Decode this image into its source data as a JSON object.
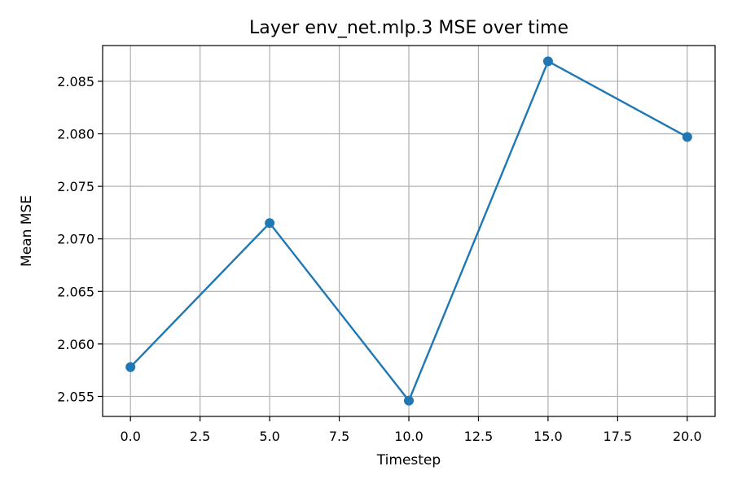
{
  "chart_data": {
    "type": "line",
    "title": "Layer env_net.mlp.3 MSE over time",
    "xlabel": "Timestep",
    "ylabel": "Mean MSE",
    "xlim": [
      -1,
      21
    ],
    "ylim": [
      2.0531,
      2.0884
    ],
    "xticks": [
      "0.0",
      "2.5",
      "5.0",
      "7.5",
      "10.0",
      "12.5",
      "15.0",
      "17.5",
      "20.0"
    ],
    "yticks": [
      "2.055",
      "2.060",
      "2.065",
      "2.070",
      "2.075",
      "2.080",
      "2.085"
    ],
    "grid": true,
    "series": [
      {
        "color": "#1f77b4",
        "marker": "circle",
        "x": [
          0,
          5,
          10,
          15,
          20
        ],
        "y": [
          2.0578,
          2.0715,
          2.0546,
          2.0869,
          2.0797
        ]
      }
    ]
  }
}
